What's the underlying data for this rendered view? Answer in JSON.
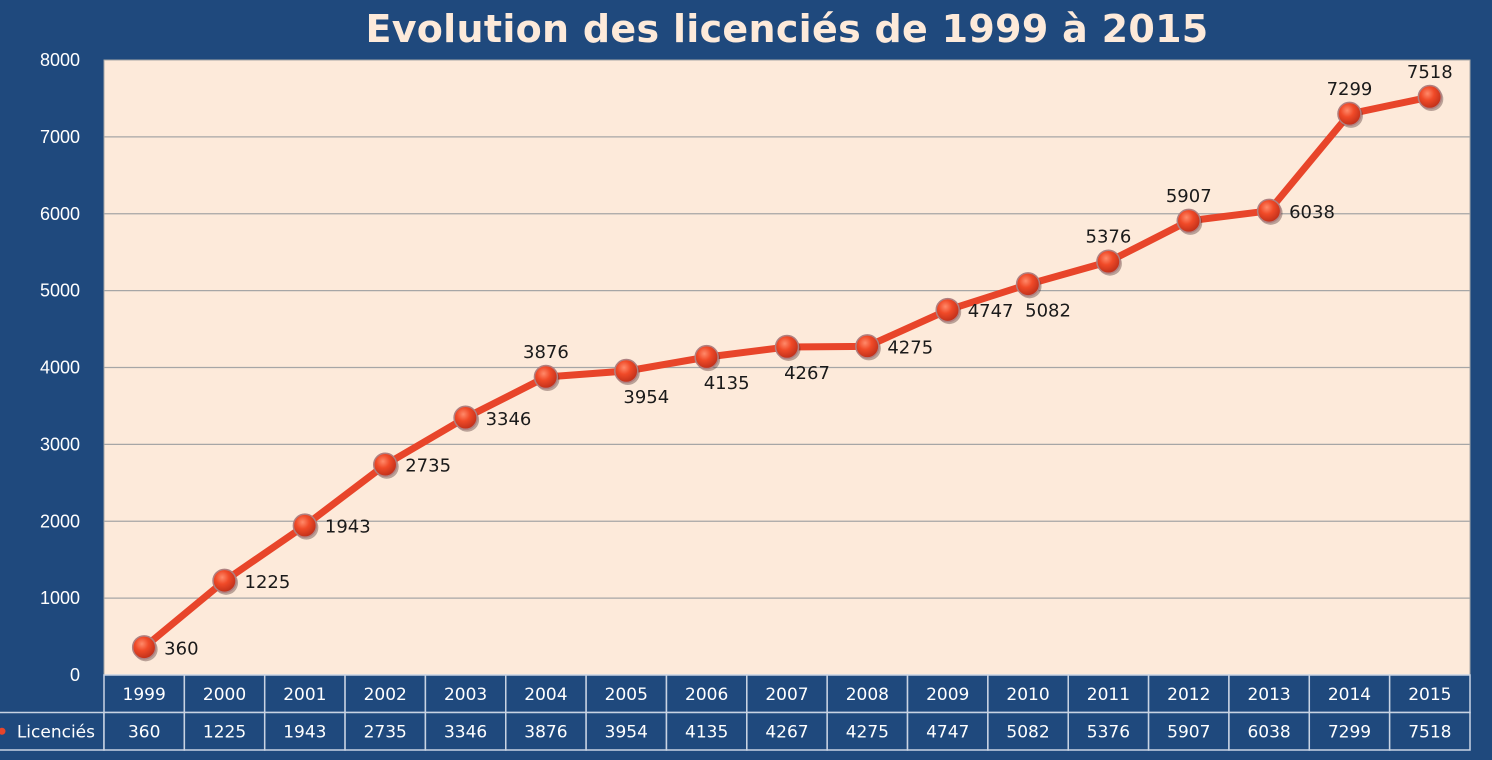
{
  "chart_data": {
    "type": "line",
    "title": "Evolution des licenciés de 1999 à 2015",
    "xlabel": "",
    "ylabel": "",
    "ylim": [
      0,
      8000
    ],
    "yticks": [
      0,
      1000,
      2000,
      3000,
      4000,
      5000,
      6000,
      7000,
      8000
    ],
    "grid": true,
    "categories": [
      "1999",
      "2000",
      "2001",
      "2002",
      "2003",
      "2004",
      "2005",
      "2006",
      "2007",
      "2008",
      "2009",
      "2010",
      "2011",
      "2012",
      "2013",
      "2014",
      "2015"
    ],
    "series": [
      {
        "name": "Licenciés",
        "values": [
          360,
          1225,
          1943,
          2735,
          3346,
          3876,
          3954,
          4135,
          4267,
          4275,
          4747,
          5082,
          5376,
          5907,
          6038,
          7299,
          7518
        ],
        "color": "#E8452A",
        "label_positions": [
          "right",
          "right",
          "right",
          "right",
          "right",
          "above",
          "below",
          "below",
          "below",
          "right",
          "right",
          "below",
          "above",
          "above",
          "right",
          "above",
          "above"
        ]
      }
    ],
    "data_table": true,
    "legend": "data-table"
  },
  "colors": {
    "background": "#1F497D",
    "plot_background": "#FDEADA",
    "gridline": "#A6A6A6",
    "table_border": "#C8D3E3"
  }
}
